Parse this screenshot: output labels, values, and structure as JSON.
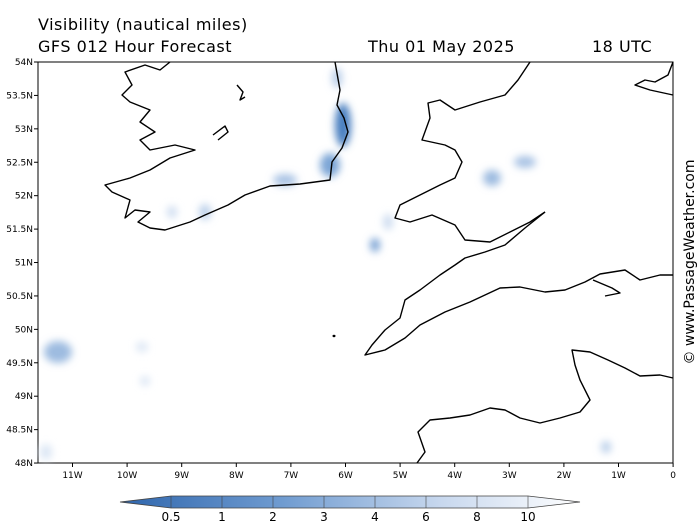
{
  "header": {
    "title": "Visibility (nautical miles)",
    "subtitle": "GFS 012 Hour Forecast",
    "date": "Thu 01 May 2025",
    "time": "18 UTC"
  },
  "map": {
    "lat_labels": [
      "54N",
      "53.5N",
      "53N",
      "52.5N",
      "52N",
      "51.5N",
      "51N",
      "50.5N",
      "50N",
      "49.5N",
      "49N",
      "48.5N",
      "48N"
    ],
    "lon_labels": [
      "11W",
      "10W",
      "9W",
      "8W",
      "7W",
      "6W",
      "5W",
      "4W",
      "3W",
      "2W",
      "1W",
      "0"
    ]
  },
  "legend": {
    "labels": [
      "0.5",
      "1",
      "2",
      "3",
      "4",
      "6",
      "8",
      "10"
    ]
  },
  "watermark": "© www.PassageWeather.com"
}
